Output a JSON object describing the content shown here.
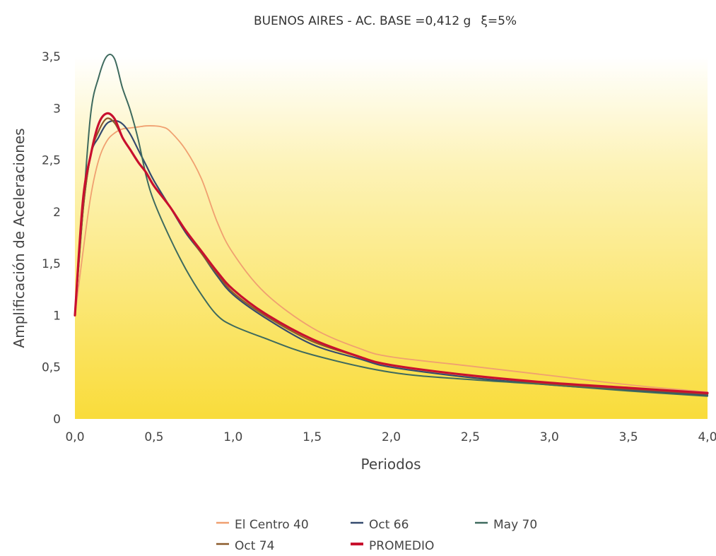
{
  "chart_data": {
    "type": "line",
    "title": "BUENOS AIRES - AC. BASE =0,412 g",
    "damping_label": "ξ=5%",
    "xlabel": "Periodos",
    "ylabel": "Amplificación de Aceleraciones",
    "xlim": [
      0,
      4
    ],
    "ylim": [
      0,
      3.5
    ],
    "x_ticks": [
      0,
      0.5,
      1,
      1.5,
      2,
      2.5,
      3,
      3.5,
      4
    ],
    "x_tick_labels": [
      "0,0",
      "0,5",
      "1,0",
      "1,5",
      "2,0",
      "2,5",
      "3,0",
      "3,5",
      "4,0"
    ],
    "y_ticks": [
      0,
      0.5,
      1,
      1.5,
      2,
      2.5,
      3,
      3.5
    ],
    "y_tick_labels": [
      "0",
      "0,5",
      "1",
      "1,5",
      "2",
      "2,5",
      "3",
      "3,5"
    ],
    "grid": false,
    "legend_position": "bottom",
    "series": [
      {
        "name": "El Centro 40",
        "color": "#f0a070",
        "x": [
          0,
          0.05,
          0.1,
          0.15,
          0.2,
          0.25,
          0.3,
          0.35,
          0.4,
          0.45,
          0.5,
          0.55,
          0.6,
          0.7,
          0.8,
          0.9,
          1.0,
          1.2,
          1.5,
          1.8,
          2.0,
          2.5,
          3.0,
          3.5,
          4.0
        ],
        "y": [
          1.0,
          1.6,
          2.15,
          2.5,
          2.68,
          2.76,
          2.8,
          2.81,
          2.82,
          2.83,
          2.83,
          2.82,
          2.78,
          2.6,
          2.32,
          1.9,
          1.6,
          1.22,
          0.88,
          0.68,
          0.6,
          0.51,
          0.42,
          0.33,
          0.26
        ]
      },
      {
        "name": "Oct 66",
        "color": "#354a6e",
        "x": [
          0,
          0.05,
          0.1,
          0.15,
          0.2,
          0.25,
          0.3,
          0.35,
          0.4,
          0.45,
          0.5,
          0.6,
          0.7,
          0.8,
          0.9,
          1.0,
          1.2,
          1.5,
          1.8,
          2.0,
          2.5,
          3.0,
          3.5,
          4.0
        ],
        "y": [
          1.0,
          2.0,
          2.55,
          2.72,
          2.85,
          2.88,
          2.85,
          2.75,
          2.6,
          2.45,
          2.3,
          2.05,
          1.8,
          1.6,
          1.38,
          1.2,
          0.98,
          0.72,
          0.58,
          0.5,
          0.4,
          0.33,
          0.28,
          0.23
        ]
      },
      {
        "name": "May 70",
        "color": "#3e6a5e",
        "x": [
          0,
          0.05,
          0.1,
          0.15,
          0.2,
          0.25,
          0.3,
          0.35,
          0.4,
          0.45,
          0.5,
          0.6,
          0.7,
          0.8,
          0.9,
          1.0,
          1.2,
          1.5,
          2.0,
          2.5,
          3.0,
          3.5,
          4.0
        ],
        "y": [
          1.0,
          2.0,
          2.95,
          3.3,
          3.5,
          3.48,
          3.2,
          2.98,
          2.7,
          2.35,
          2.1,
          1.75,
          1.45,
          1.2,
          1.0,
          0.9,
          0.78,
          0.62,
          0.45,
          0.38,
          0.33,
          0.27,
          0.22
        ]
      },
      {
        "name": "Oct 74",
        "color": "#8b5a2a",
        "x": [
          0,
          0.05,
          0.1,
          0.15,
          0.2,
          0.25,
          0.3,
          0.35,
          0.4,
          0.45,
          0.5,
          0.6,
          0.7,
          0.8,
          0.9,
          1.0,
          1.2,
          1.5,
          1.8,
          2.0,
          2.5,
          3.0,
          3.5,
          4.0
        ],
        "y": [
          1.0,
          2.0,
          2.55,
          2.78,
          2.9,
          2.86,
          2.72,
          2.6,
          2.48,
          2.38,
          2.25,
          2.05,
          1.82,
          1.6,
          1.4,
          1.22,
          1.0,
          0.75,
          0.6,
          0.52,
          0.42,
          0.34,
          0.29,
          0.24
        ]
      },
      {
        "name": "PROMEDIO",
        "color": "#c8102e",
        "x": [
          0,
          0.05,
          0.1,
          0.15,
          0.2,
          0.25,
          0.3,
          0.35,
          0.4,
          0.45,
          0.5,
          0.6,
          0.7,
          0.8,
          0.9,
          1.0,
          1.2,
          1.5,
          1.8,
          2.0,
          2.5,
          3.0,
          3.5,
          4.0
        ],
        "y": [
          1.0,
          2.1,
          2.55,
          2.85,
          2.95,
          2.9,
          2.72,
          2.6,
          2.48,
          2.38,
          2.25,
          2.05,
          1.82,
          1.62,
          1.42,
          1.25,
          1.02,
          0.77,
          0.6,
          0.52,
          0.42,
          0.35,
          0.3,
          0.25
        ]
      }
    ]
  }
}
